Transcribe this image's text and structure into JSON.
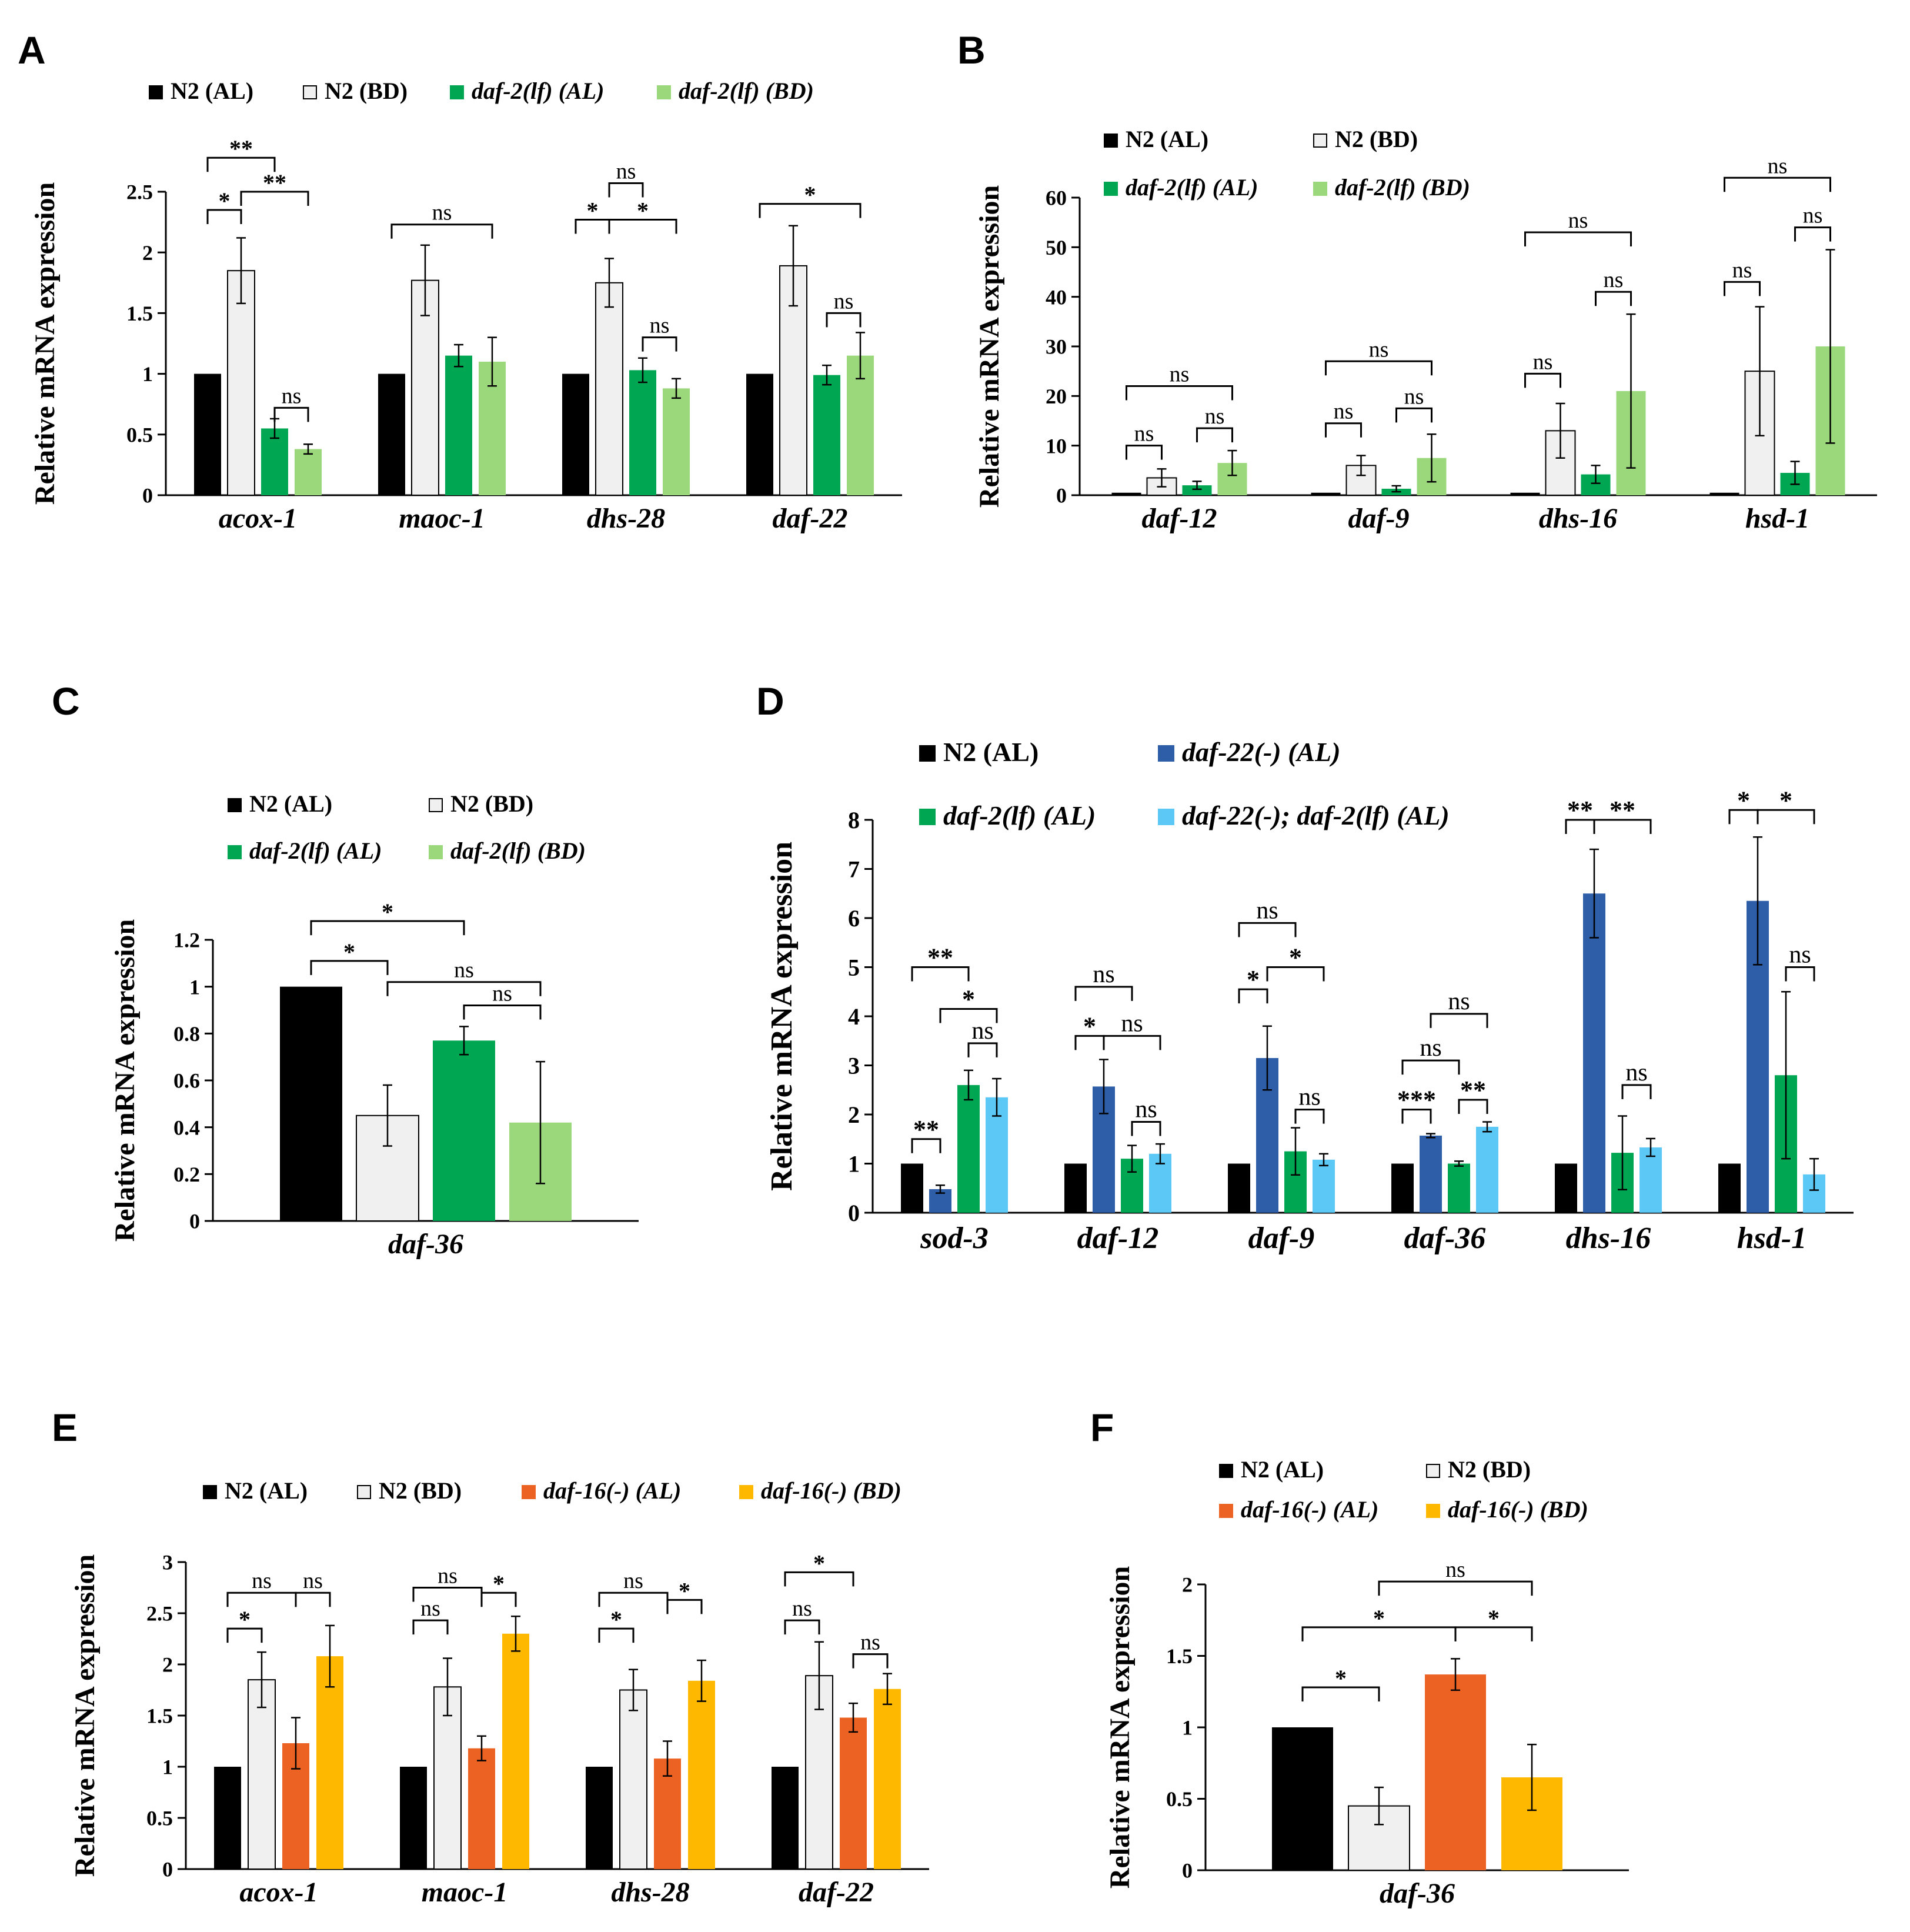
{
  "colors": {
    "n2_al": "#000000",
    "n2_bd": "#f0f0f0",
    "daf2_al": "#00a651",
    "daf2_bd": "#9bd87b",
    "daf22_al": "#2e5ea8",
    "daf22_daf2_al": "#5bc8f5",
    "daf16_al": "#ec6223",
    "daf16_bd": "#ffb800",
    "axis": "#000000"
  },
  "chart_data": [
    {
      "panel": "A",
      "type": "bar",
      "title": "",
      "xlabel": "",
      "ylabel": "Relative mRNA expression",
      "ylim": [
        0,
        2.5
      ],
      "yticks": [
        "0",
        "0.5",
        "1",
        "1.5",
        "2",
        "2.5"
      ],
      "categories": [
        "acox-1",
        "maoc-1",
        "dhs-28",
        "daf-22"
      ],
      "series": [
        {
          "name": "N2 (AL)",
          "color_key": "n2_al",
          "values": [
            1.0,
            1.0,
            1.0,
            1.0
          ],
          "errors": [
            0,
            0,
            0,
            0
          ]
        },
        {
          "name": "N2 (BD)",
          "color_key": "n2_bd",
          "values": [
            1.85,
            1.77,
            1.75,
            1.89
          ],
          "errors": [
            0.27,
            0.29,
            0.2,
            0.33
          ]
        },
        {
          "name": "daf-2(lf) (AL)",
          "color_key": "daf2_al",
          "values": [
            0.55,
            1.15,
            1.03,
            0.99
          ],
          "errors": [
            0.08,
            0.09,
            0.1,
            0.08
          ]
        },
        {
          "name": "daf-2(lf) (BD)",
          "color_key": "daf2_bd",
          "values": [
            0.38,
            1.1,
            0.88,
            1.15
          ],
          "errors": [
            0.04,
            0.2,
            0.08,
            0.19
          ]
        }
      ],
      "brackets": [
        {
          "cat": 0,
          "s1": 0,
          "s2": 1,
          "y": 2.35,
          "label": "*"
        },
        {
          "cat": 0,
          "s1": 1,
          "s2": 3,
          "y": 2.5,
          "label": "**"
        },
        {
          "cat": 0,
          "s1": 0,
          "s2": 2,
          "y": 2.78,
          "label": "**"
        },
        {
          "cat": 0,
          "s1": 2,
          "s2": 3,
          "y": 0.72,
          "label": "ns"
        },
        {
          "cat": 1,
          "s1": 0,
          "s2": 3,
          "y": 2.23,
          "label": "ns"
        },
        {
          "cat": 2,
          "s1": 0,
          "s2": 1,
          "y": 2.27,
          "label": "*"
        },
        {
          "cat": 2,
          "s1": 1,
          "s2": 3,
          "y": 2.27,
          "label": "*"
        },
        {
          "cat": 2,
          "s1": 1,
          "s2": 2,
          "y": 2.57,
          "label": "ns"
        },
        {
          "cat": 2,
          "s1": 2,
          "s2": 3,
          "y": 1.3,
          "label": "ns"
        },
        {
          "cat": 3,
          "s1": 0,
          "s2": 3,
          "y": 2.4,
          "label": "*"
        },
        {
          "cat": 3,
          "s1": 2,
          "s2": 3,
          "y": 1.5,
          "label": "ns"
        }
      ]
    },
    {
      "panel": "B",
      "type": "bar",
      "title": "",
      "xlabel": "",
      "ylabel": "Relative mRNA expression",
      "ylim": [
        0,
        60
      ],
      "yticks": [
        "0",
        "10",
        "20",
        "30",
        "40",
        "50",
        "60"
      ],
      "categories": [
        "daf-12",
        "daf-9",
        "dhs-16",
        "hsd-1"
      ],
      "series": [
        {
          "name": "N2 (AL)",
          "color_key": "n2_al",
          "values": [
            0.5,
            0.5,
            0.5,
            0.5
          ],
          "errors": [
            0,
            0,
            0,
            0
          ]
        },
        {
          "name": "N2 (BD)",
          "color_key": "n2_bd",
          "values": [
            3.5,
            6.0,
            13.0,
            25.0
          ],
          "errors": [
            1.8,
            2.0,
            5.5,
            13.0
          ]
        },
        {
          "name": "daf-2(lf) (AL)",
          "color_key": "daf2_al",
          "values": [
            2.0,
            1.3,
            4.2,
            4.5
          ],
          "errors": [
            0.8,
            0.6,
            1.8,
            2.3
          ]
        },
        {
          "name": "daf-2(lf) (BD)",
          "color_key": "daf2_bd",
          "values": [
            6.5,
            7.5,
            21.0,
            30.0
          ],
          "errors": [
            2.5,
            4.8,
            15.5,
            19.5
          ]
        }
      ],
      "brackets": [
        {
          "cat": 0,
          "s1": 0,
          "s2": 3,
          "y": 22,
          "label": "ns"
        },
        {
          "cat": 0,
          "s1": 0,
          "s2": 1,
          "y": 10,
          "label": "ns"
        },
        {
          "cat": 0,
          "s1": 2,
          "s2": 3,
          "y": 13.5,
          "label": "ns"
        },
        {
          "cat": 1,
          "s1": 0,
          "s2": 3,
          "y": 27,
          "label": "ns"
        },
        {
          "cat": 1,
          "s1": 0,
          "s2": 1,
          "y": 14.5,
          "label": "ns"
        },
        {
          "cat": 1,
          "s1": 2,
          "s2": 3,
          "y": 17.5,
          "label": "ns"
        },
        {
          "cat": 2,
          "s1": 0,
          "s2": 3,
          "y": 53,
          "label": "ns"
        },
        {
          "cat": 2,
          "s1": 0,
          "s2": 1,
          "y": 24.5,
          "label": "ns"
        },
        {
          "cat": 2,
          "s1": 2,
          "s2": 3,
          "y": 41,
          "label": "ns"
        },
        {
          "cat": 3,
          "s1": 0,
          "s2": 3,
          "y": 64,
          "label": "ns"
        },
        {
          "cat": 3,
          "s1": 0,
          "s2": 1,
          "y": 43,
          "label": "ns"
        },
        {
          "cat": 3,
          "s1": 2,
          "s2": 3,
          "y": 54,
          "label": "ns"
        }
      ]
    },
    {
      "panel": "C",
      "type": "bar",
      "title": "",
      "xlabel": "",
      "ylabel": "Relative mRNA expression",
      "ylim": [
        0,
        1.2
      ],
      "yticks": [
        "0",
        "0.2",
        "0.4",
        "0.6",
        "0.8",
        "1",
        "1.2"
      ],
      "categories": [
        "daf-36"
      ],
      "series": [
        {
          "name": "N2 (AL)",
          "color_key": "n2_al",
          "values": [
            1.0
          ],
          "errors": [
            0
          ]
        },
        {
          "name": "N2 (BD)",
          "color_key": "n2_bd",
          "values": [
            0.45
          ],
          "errors": [
            0.13
          ]
        },
        {
          "name": "daf-2(lf) (AL)",
          "color_key": "daf2_al",
          "values": [
            0.77
          ],
          "errors": [
            0.06
          ]
        },
        {
          "name": "daf-2(lf) (BD)",
          "color_key": "daf2_bd",
          "values": [
            0.42
          ],
          "errors": [
            0.26
          ]
        }
      ],
      "brackets": [
        {
          "cat": 0,
          "s1": 0,
          "s2": 2,
          "y": 1.28,
          "label": "*"
        },
        {
          "cat": 0,
          "s1": 0,
          "s2": 1,
          "y": 1.11,
          "label": "*"
        },
        {
          "cat": 0,
          "s1": 1,
          "s2": 3,
          "y": 1.02,
          "label": "ns"
        },
        {
          "cat": 0,
          "s1": 2,
          "s2": 3,
          "y": 0.92,
          "label": "ns"
        }
      ]
    },
    {
      "panel": "D",
      "type": "bar",
      "title": "",
      "xlabel": "",
      "ylabel": "Relative mRNA expression",
      "ylim": [
        0,
        8
      ],
      "yticks": [
        "0",
        "1",
        "2",
        "3",
        "4",
        "5",
        "6",
        "7",
        "8"
      ],
      "categories": [
        "sod-3",
        "daf-12",
        "daf-9",
        "daf-36",
        "dhs-16",
        "hsd-1"
      ],
      "series": [
        {
          "name": "N2 (AL)",
          "color_key": "n2_al",
          "values": [
            1.0,
            1.0,
            1.0,
            1.0,
            1.0,
            1.0
          ],
          "errors": [
            0,
            0,
            0,
            0,
            0,
            0
          ]
        },
        {
          "name": "daf-22(-) (AL)",
          "color_key": "daf22_al",
          "values": [
            0.48,
            2.57,
            3.15,
            1.57,
            6.5,
            6.35
          ],
          "errors": [
            0.08,
            0.55,
            0.65,
            0.04,
            0.9,
            1.3
          ]
        },
        {
          "name": "daf-2(lf) (AL)",
          "color_key": "daf2_al",
          "values": [
            2.6,
            1.1,
            1.25,
            1.0,
            1.22,
            2.8
          ],
          "errors": [
            0.3,
            0.27,
            0.48,
            0.05,
            0.75,
            1.7
          ]
        },
        {
          "name": "daf-22(-); daf-2(lf) (AL)",
          "color_key": "daf22_daf2_al",
          "values": [
            2.35,
            1.2,
            1.08,
            1.75,
            1.33,
            0.78
          ],
          "errors": [
            0.38,
            0.2,
            0.12,
            0.1,
            0.18,
            0.32
          ]
        }
      ],
      "brackets": [
        {
          "cat": 0,
          "s1": 0,
          "s2": 2,
          "y": 5.0,
          "label": "**"
        },
        {
          "cat": 0,
          "s1": 0,
          "s2": 1,
          "y": 1.5,
          "label": "**"
        },
        {
          "cat": 0,
          "s1": 1,
          "s2": 3,
          "y": 4.15,
          "label": "*"
        },
        {
          "cat": 0,
          "s1": 2,
          "s2": 3,
          "y": 3.45,
          "label": "ns"
        },
        {
          "cat": 1,
          "s1": 0,
          "s2": 2,
          "y": 4.6,
          "label": "ns"
        },
        {
          "cat": 1,
          "s1": 0,
          "s2": 1,
          "y": 3.6,
          "label": "*"
        },
        {
          "cat": 1,
          "s1": 1,
          "s2": 3,
          "y": 3.6,
          "label": "ns"
        },
        {
          "cat": 1,
          "s1": 2,
          "s2": 3,
          "y": 1.85,
          "label": "ns"
        },
        {
          "cat": 2,
          "s1": 0,
          "s2": 2,
          "y": 5.9,
          "label": "ns"
        },
        {
          "cat": 2,
          "s1": 0,
          "s2": 1,
          "y": 4.55,
          "label": "*"
        },
        {
          "cat": 2,
          "s1": 1,
          "s2": 3,
          "y": 5.0,
          "label": "*"
        },
        {
          "cat": 2,
          "s1": 2,
          "s2": 3,
          "y": 2.1,
          "label": "ns"
        },
        {
          "cat": 3,
          "s1": 0,
          "s2": 2,
          "y": 3.1,
          "label": "ns"
        },
        {
          "cat": 3,
          "s1": 1,
          "s2": 3,
          "y": 4.05,
          "label": "ns"
        },
        {
          "cat": 3,
          "s1": 0,
          "s2": 1,
          "y": 2.1,
          "label": "***"
        },
        {
          "cat": 3,
          "s1": 2,
          "s2": 3,
          "y": 2.3,
          "label": "**"
        },
        {
          "cat": 4,
          "s1": 0,
          "s2": 1,
          "y": 8.0,
          "label": "**"
        },
        {
          "cat": 4,
          "s1": 1,
          "s2": 3,
          "y": 8.0,
          "label": "**"
        },
        {
          "cat": 4,
          "s1": 2,
          "s2": 3,
          "y": 2.6,
          "label": "ns"
        },
        {
          "cat": 5,
          "s1": 0,
          "s2": 1,
          "y": 8.2,
          "label": "*"
        },
        {
          "cat": 5,
          "s1": 1,
          "s2": 3,
          "y": 8.2,
          "label": "*"
        },
        {
          "cat": 5,
          "s1": 2,
          "s2": 3,
          "y": 5.0,
          "label": "ns"
        }
      ]
    },
    {
      "panel": "E",
      "type": "bar",
      "title": "",
      "xlabel": "",
      "ylabel": "Relative mRNA expression",
      "ylim": [
        0,
        3
      ],
      "yticks": [
        "0",
        "0.5",
        "1",
        "1.5",
        "2",
        "2.5",
        "3"
      ],
      "categories": [
        "acox-1",
        "maoc-1",
        "dhs-28",
        "daf-22"
      ],
      "series": [
        {
          "name": "N2 (AL)",
          "color_key": "n2_al",
          "values": [
            1.0,
            1.0,
            1.0,
            1.0
          ],
          "errors": [
            0,
            0,
            0,
            0
          ]
        },
        {
          "name": "N2 (BD)",
          "color_key": "n2_bd",
          "values": [
            1.85,
            1.78,
            1.75,
            1.89
          ],
          "errors": [
            0.27,
            0.28,
            0.2,
            0.33
          ]
        },
        {
          "name": "daf-16(-) (AL)",
          "color_key": "daf16_al",
          "values": [
            1.23,
            1.18,
            1.08,
            1.48
          ],
          "errors": [
            0.25,
            0.12,
            0.17,
            0.14
          ]
        },
        {
          "name": "daf-16(-) (BD)",
          "color_key": "daf16_bd",
          "values": [
            2.08,
            2.3,
            1.84,
            1.76
          ],
          "errors": [
            0.3,
            0.17,
            0.2,
            0.15
          ]
        }
      ],
      "brackets": [
        {
          "cat": 0,
          "s1": 0,
          "s2": 2,
          "y": 2.7,
          "label": "ns"
        },
        {
          "cat": 0,
          "s1": 2,
          "s2": 3,
          "y": 2.7,
          "label": "ns"
        },
        {
          "cat": 0,
          "s1": 0,
          "s2": 1,
          "y": 2.35,
          "label": "*"
        },
        {
          "cat": 1,
          "s1": 0,
          "s2": 2,
          "y": 2.75,
          "label": "ns"
        },
        {
          "cat": 1,
          "s1": 0,
          "s2": 1,
          "y": 2.43,
          "label": "ns"
        },
        {
          "cat": 1,
          "s1": 2,
          "s2": 3,
          "y": 2.7,
          "label": "*"
        },
        {
          "cat": 2,
          "s1": 0,
          "s2": 2,
          "y": 2.7,
          "label": "ns"
        },
        {
          "cat": 2,
          "s1": 0,
          "s2": 1,
          "y": 2.35,
          "label": "*"
        },
        {
          "cat": 2,
          "s1": 2,
          "s2": 3,
          "y": 2.63,
          "label": "*"
        },
        {
          "cat": 3,
          "s1": 0,
          "s2": 2,
          "y": 2.9,
          "label": "*"
        },
        {
          "cat": 3,
          "s1": 0,
          "s2": 1,
          "y": 2.43,
          "label": "ns"
        },
        {
          "cat": 3,
          "s1": 2,
          "s2": 3,
          "y": 2.1,
          "label": "ns"
        }
      ]
    },
    {
      "panel": "F",
      "type": "bar",
      "title": "",
      "xlabel": "",
      "ylabel": "Relative mRNA expression",
      "ylim": [
        0,
        2
      ],
      "yticks": [
        "0",
        "0.5",
        "1",
        "1.5",
        "2"
      ],
      "categories": [
        "daf-36"
      ],
      "series": [
        {
          "name": "N2 (AL)",
          "color_key": "n2_al",
          "values": [
            1.0
          ],
          "errors": [
            0
          ]
        },
        {
          "name": "N2 (BD)",
          "color_key": "n2_bd",
          "values": [
            0.45
          ],
          "errors": [
            0.13
          ]
        },
        {
          "name": "daf-16(-) (AL)",
          "color_key": "daf16_al",
          "values": [
            1.37
          ],
          "errors": [
            0.11
          ]
        },
        {
          "name": "daf-16(-) (BD)",
          "color_key": "daf16_bd",
          "values": [
            0.65
          ],
          "errors": [
            0.23
          ]
        }
      ],
      "brackets": [
        {
          "cat": 0,
          "s1": 1,
          "s2": 3,
          "y": 2.02,
          "label": "ns"
        },
        {
          "cat": 0,
          "s1": 0,
          "s2": 2,
          "y": 1.7,
          "label": "*"
        },
        {
          "cat": 0,
          "s1": 2,
          "s2": 3,
          "y": 1.7,
          "label": "*"
        },
        {
          "cat": 0,
          "s1": 0,
          "s2": 1,
          "y": 1.28,
          "label": "*"
        }
      ]
    }
  ]
}
